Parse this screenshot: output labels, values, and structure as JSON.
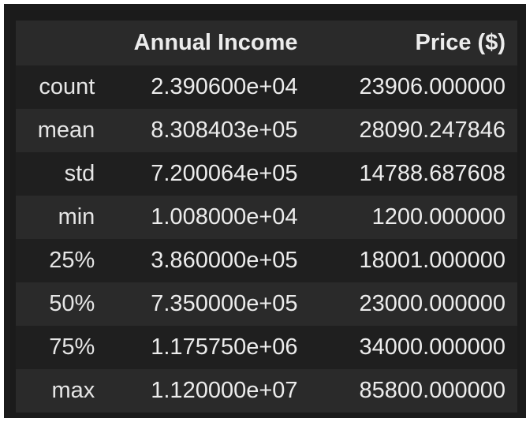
{
  "table": {
    "columns": [
      "",
      "Annual Income",
      "Price ($)"
    ],
    "rows": [
      {
        "index": "count",
        "annual_income": "2.390600e+04",
        "price": "23906.000000"
      },
      {
        "index": "mean",
        "annual_income": "8.308403e+05",
        "price": "28090.247846"
      },
      {
        "index": "std",
        "annual_income": "7.200064e+05",
        "price": "14788.687608"
      },
      {
        "index": "min",
        "annual_income": "1.008000e+04",
        "price": "1200.000000"
      },
      {
        "index": "25%",
        "annual_income": "3.860000e+05",
        "price": "18001.000000"
      },
      {
        "index": "50%",
        "annual_income": "7.350000e+05",
        "price": "23000.000000"
      },
      {
        "index": "75%",
        "annual_income": "1.175750e+06",
        "price": "34000.000000"
      },
      {
        "index": "max",
        "annual_income": "1.120000e+07",
        "price": "85800.000000"
      }
    ]
  },
  "colors": {
    "panel_background": "#1b1b1b",
    "row_stripe": "#2a2a2a",
    "row_plain": "#1f1f1f",
    "text": "#ececec"
  }
}
